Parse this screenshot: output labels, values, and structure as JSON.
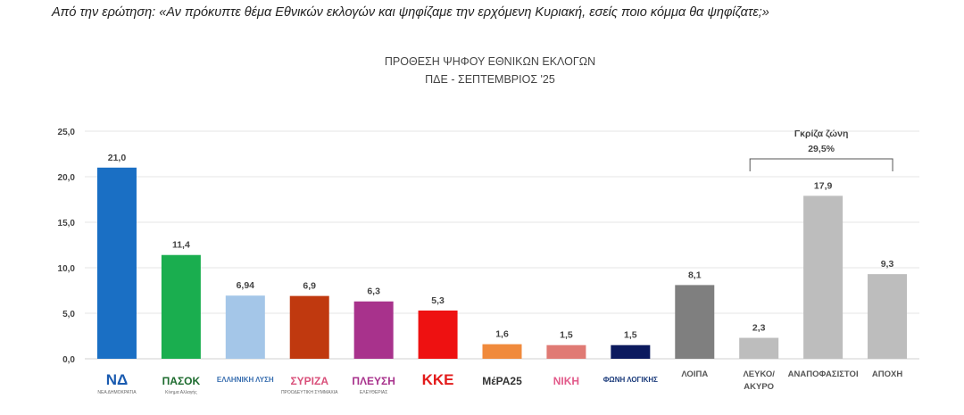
{
  "question": "Από την ερώτηση: «Αν πρόκυπτε θέμα Εθνικών εκλογών και ψηφίζαμε την ερχόμενη Κυριακή, εσείς ποιο κόμμα θα ψηφίζατε;»",
  "chart_data": {
    "type": "bar",
    "title": "ΠΡΟΘΕΣΗ ΨΗΦΟΥ  ΕΘΝΙΚΩΝ ΕΚΛΟΓΩΝ",
    "subtitle": "ΠΔΕ - ΣΕΠΤΕΜΒΡΙΟΣ '25",
    "xlabel": "",
    "ylabel": "",
    "ylim": [
      0,
      25
    ],
    "yticks": [
      "0,0",
      "5,0",
      "10,0",
      "15,0",
      "20,0",
      "25,0"
    ],
    "grid": true,
    "categories": [
      {
        "label": "",
        "logo": "ΝΔ",
        "logo_sub": "ΝΕΑ ΔΗΜΟΚΡΑΤΙΑ",
        "value": 21.0,
        "value_label": "21,0",
        "color": "#1a6fc4",
        "logo_color": "#1a5bb0"
      },
      {
        "label": "",
        "logo": "ΠΑΣΟΚ",
        "logo_sub": "Κίνημα Αλλαγής",
        "value": 11.4,
        "value_label": "11,4",
        "color": "#1aae4f",
        "logo_color": "#1d6b2e"
      },
      {
        "label": "",
        "logo": "ΕΛΛΗΝΙΚΗ ΛΥΣΗ",
        "logo_sub": "",
        "value": 6.94,
        "value_label": "6,94",
        "color": "#a4c6e8",
        "logo_color": "#3a6fb0"
      },
      {
        "label": "",
        "logo": "ΣΥΡΙΖΑ",
        "logo_sub": "ΠΡΟΟΔΕΥΤΙΚΗ ΣΥΜΜΑΧΙΑ",
        "value": 6.9,
        "value_label": "6,9",
        "color": "#c0390f",
        "logo_color": "#d9507a"
      },
      {
        "label": "",
        "logo": "ΠΛΕΥΣΗ",
        "logo_sub": "ΕΛΕΥΘΕΡΙΑΣ",
        "value": 6.3,
        "value_label": "6,3",
        "color": "#a8328c",
        "logo_color": "#a8328c"
      },
      {
        "label": "",
        "logo": "ΚΚΕ",
        "logo_sub": "",
        "value": 5.3,
        "value_label": "5,3",
        "color": "#ee1111",
        "logo_color": "#e31b1b"
      },
      {
        "label": "",
        "logo": "ΜέΡΑ25",
        "logo_sub": "",
        "value": 1.6,
        "value_label": "1,6",
        "color": "#f08a3c",
        "logo_color": "#333333"
      },
      {
        "label": "",
        "logo": "ΝΙΚΗ",
        "logo_sub": "",
        "value": 1.5,
        "value_label": "1,5",
        "color": "#e07a74",
        "logo_color": "#e25a8a"
      },
      {
        "label": "",
        "logo": "ΦΩΝΗ ΛΟΓΙΚΗΣ",
        "logo_sub": "",
        "value": 1.5,
        "value_label": "1,5",
        "color": "#0c1a5e",
        "logo_color": "#1a3a7a"
      },
      {
        "label": "ΛΟΙΠΑ",
        "value": 8.1,
        "value_label": "8,1",
        "color": "#7f7f7f"
      },
      {
        "label": "ΛΕΥΚΟ/ ΑΚΥΡΟ",
        "label2": "ΑΚΥΡΟ",
        "label1": "ΛΕΥΚΟ/",
        "value": 2.3,
        "value_label": "2,3",
        "color": "#bdbdbd"
      },
      {
        "label": "ΑΝΑΠΟΦΑΣΙΣΤΟΙ",
        "value": 17.9,
        "value_label": "17,9",
        "color": "#bdbdbd"
      },
      {
        "label": "ΑΠΟΧΗ",
        "value": 9.3,
        "value_label": "9,3",
        "color": "#bdbdbd"
      }
    ],
    "annotation": {
      "title": "Γκρίζα ζώνη",
      "value": "29,5%",
      "span": [
        "ΛΕΥΚΟ/ ΑΚΥΡΟ",
        "ΑΠΟΧΗ"
      ]
    }
  }
}
